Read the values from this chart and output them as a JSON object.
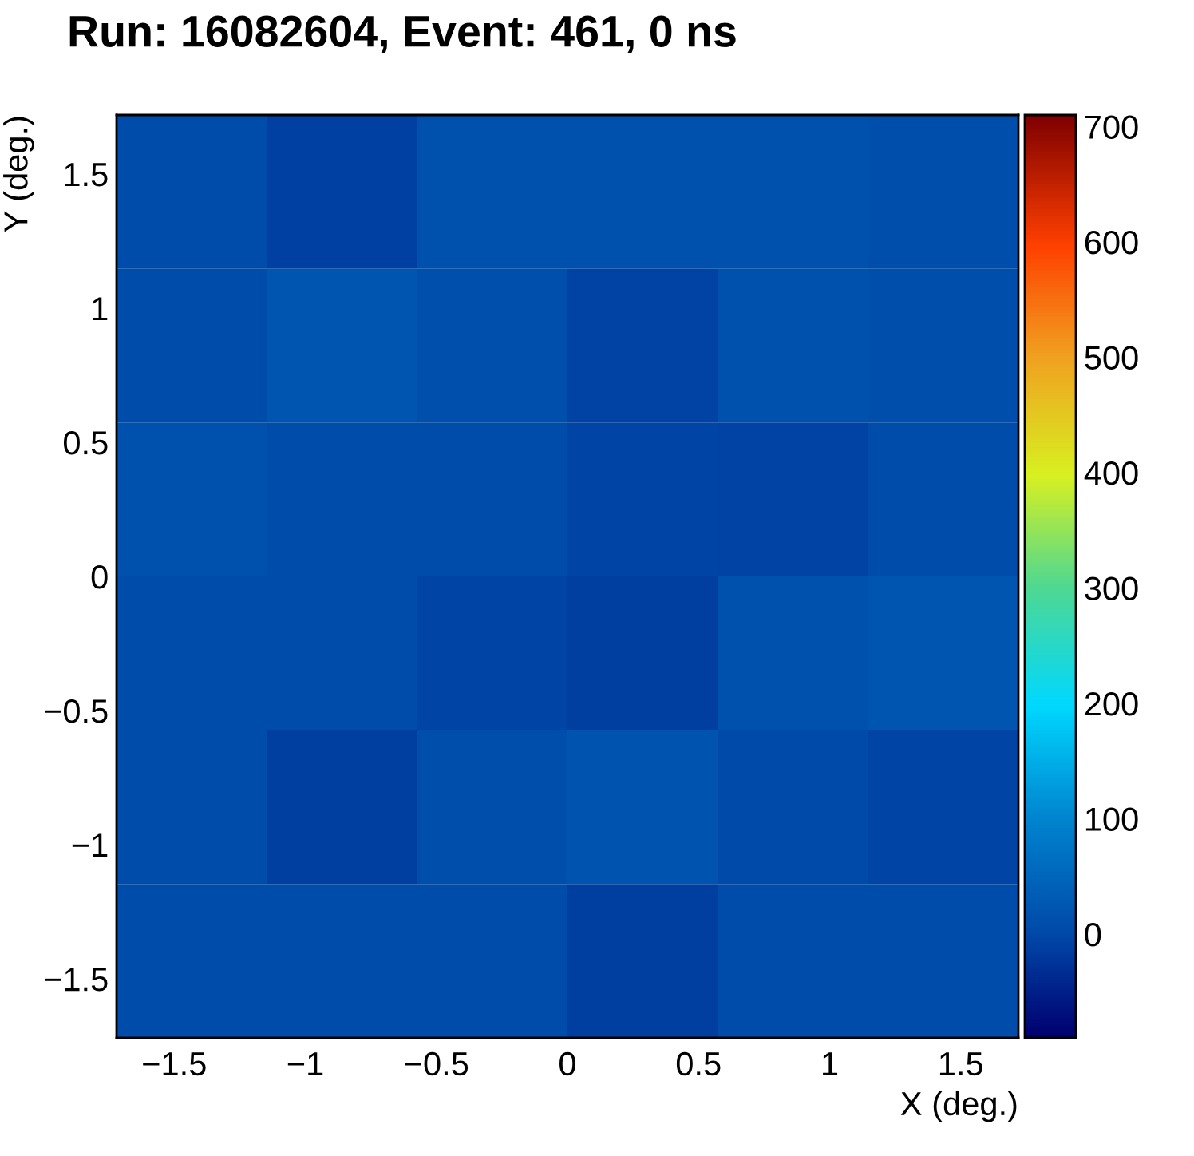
{
  "chart_data": {
    "type": "heatmap",
    "title": "Run: 16082604, Event: 461, 0 ns",
    "xlabel": "X (deg.)",
    "ylabel": "Y (deg.)",
    "x": [
      -1.433,
      -0.86,
      -0.287,
      0.287,
      0.86,
      1.433
    ],
    "y": [
      1.433,
      0.86,
      0.287,
      -0.287,
      -0.86,
      -1.433
    ],
    "xlim": [
      -1.72,
      1.72
    ],
    "ylim": [
      -1.72,
      1.72
    ],
    "xticks": [
      {
        "value": -1.5,
        "label": "−1.5"
      },
      {
        "value": -1,
        "label": "−1"
      },
      {
        "value": -0.5,
        "label": "−0.5"
      },
      0,
      0.5,
      1,
      1.5
    ],
    "yticks": [
      {
        "value": -1.5,
        "label": "−1.5"
      },
      {
        "value": -1,
        "label": "−1"
      },
      {
        "value": -0.5,
        "label": "−0.5"
      },
      0,
      0.5,
      1,
      1.5
    ],
    "cells": [
      [
        5,
        -10,
        15,
        15,
        15,
        8
      ],
      [
        5,
        20,
        12,
        -8,
        15,
        8
      ],
      [
        15,
        5,
        5,
        -5,
        -8,
        5
      ],
      [
        5,
        5,
        -5,
        -15,
        15,
        22
      ],
      [
        5,
        -15,
        8,
        18,
        3,
        -5
      ],
      [
        5,
        5,
        5,
        -15,
        5,
        5
      ]
    ],
    "clim": [
      -90,
      710
    ],
    "cticks": [
      0,
      100,
      200,
      300,
      400,
      500,
      600,
      700
    ]
  }
}
